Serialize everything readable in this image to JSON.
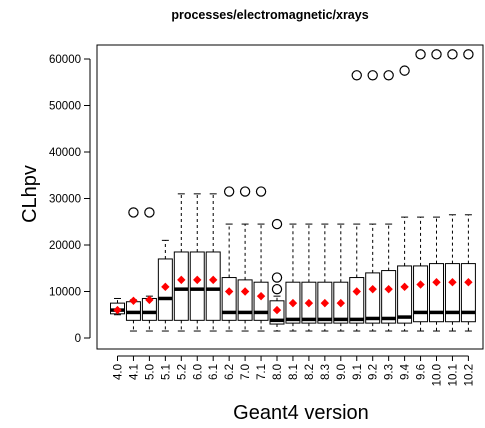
{
  "chart_data": {
    "type": "boxplot",
    "title": "processes/electromagnetic/xrays",
    "xlabel": "Geant4 version",
    "ylabel": "CLhpv",
    "ylim": [
      -1500,
      64000
    ],
    "yticks": [
      0,
      10000,
      20000,
      30000,
      40000,
      50000,
      60000
    ],
    "ytick_labels": [
      "0",
      "10000",
      "20000",
      "30000",
      "40000",
      "50000",
      "60000"
    ],
    "categories": [
      "4.0",
      "4.1",
      "5.0",
      "5.1",
      "5.2",
      "6.0",
      "6.1",
      "6.2",
      "7.0",
      "7.1",
      "8.0",
      "8.1",
      "8.2",
      "8.3",
      "9.0",
      "9.1",
      "9.2",
      "9.3",
      "9.4",
      "9.6",
      "10.0",
      "10.1",
      "10.2"
    ],
    "boxes": [
      {
        "wlo": 5000,
        "q1": 5200,
        "med": 6000,
        "q3": 7500,
        "whi": 8500,
        "mean": 6000,
        "outliers": []
      },
      {
        "wlo": 1500,
        "q1": 3800,
        "med": 5500,
        "q3": 7800,
        "whi": 8200,
        "mean": 8000,
        "outliers": [
          27000
        ]
      },
      {
        "wlo": 1500,
        "q1": 3800,
        "med": 5500,
        "q3": 8500,
        "whi": 9000,
        "mean": 8200,
        "outliers": [
          27000
        ]
      },
      {
        "wlo": 1500,
        "q1": 3800,
        "med": 8500,
        "q3": 17000,
        "whi": 21000,
        "mean": 11000,
        "outliers": []
      },
      {
        "wlo": 1500,
        "q1": 3800,
        "med": 10500,
        "q3": 18500,
        "whi": 31000,
        "mean": 12500,
        "outliers": []
      },
      {
        "wlo": 1500,
        "q1": 3800,
        "med": 10500,
        "q3": 18500,
        "whi": 31000,
        "mean": 12500,
        "outliers": []
      },
      {
        "wlo": 1500,
        "q1": 3800,
        "med": 10500,
        "q3": 18500,
        "whi": 31000,
        "mean": 12500,
        "outliers": []
      },
      {
        "wlo": 1500,
        "q1": 3800,
        "med": 5500,
        "q3": 13000,
        "whi": 24500,
        "mean": 10000,
        "outliers": [
          31500
        ]
      },
      {
        "wlo": 1500,
        "q1": 3800,
        "med": 5500,
        "q3": 12500,
        "whi": 24500,
        "mean": 10000,
        "outliers": [
          31500
        ]
      },
      {
        "wlo": 1500,
        "q1": 3800,
        "med": 5500,
        "q3": 12000,
        "whi": 24500,
        "mean": 9000,
        "outliers": [
          31500
        ]
      },
      {
        "wlo": 1500,
        "q1": 3000,
        "med": 3800,
        "q3": 8000,
        "whi": 9000,
        "mean": 6000,
        "outliers": [
          13000,
          10500,
          24500
        ]
      },
      {
        "wlo": 1500,
        "q1": 3200,
        "med": 4000,
        "q3": 12000,
        "whi": 24500,
        "mean": 7500,
        "outliers": []
      },
      {
        "wlo": 1500,
        "q1": 3200,
        "med": 4000,
        "q3": 12000,
        "whi": 24500,
        "mean": 7500,
        "outliers": []
      },
      {
        "wlo": 1500,
        "q1": 3200,
        "med": 4000,
        "q3": 12000,
        "whi": 24500,
        "mean": 7500,
        "outliers": []
      },
      {
        "wlo": 1500,
        "q1": 3200,
        "med": 4000,
        "q3": 12000,
        "whi": 24500,
        "mean": 7500,
        "outliers": []
      },
      {
        "wlo": 1500,
        "q1": 3200,
        "med": 4000,
        "q3": 13000,
        "whi": 24500,
        "mean": 10000,
        "outliers": [
          56500
        ]
      },
      {
        "wlo": 1500,
        "q1": 3200,
        "med": 4200,
        "q3": 14000,
        "whi": 24500,
        "mean": 10500,
        "outliers": [
          56500
        ]
      },
      {
        "wlo": 1500,
        "q1": 3200,
        "med": 4200,
        "q3": 14500,
        "whi": 24500,
        "mean": 10500,
        "outliers": [
          56500
        ]
      },
      {
        "wlo": 1500,
        "q1": 3200,
        "med": 4500,
        "q3": 15500,
        "whi": 26000,
        "mean": 11000,
        "outliers": [
          57500
        ]
      },
      {
        "wlo": 1500,
        "q1": 3500,
        "med": 5500,
        "q3": 15500,
        "whi": 26000,
        "mean": 11500,
        "outliers": [
          61000
        ]
      },
      {
        "wlo": 1500,
        "q1": 3500,
        "med": 5500,
        "q3": 16000,
        "whi": 26000,
        "mean": 12000,
        "outliers": [
          61000
        ]
      },
      {
        "wlo": 1500,
        "q1": 3500,
        "med": 5500,
        "q3": 16000,
        "whi": 26500,
        "mean": 12000,
        "outliers": [
          61000
        ]
      },
      {
        "wlo": 1500,
        "q1": 3500,
        "med": 5500,
        "q3": 16000,
        "whi": 26500,
        "mean": 12000,
        "outliers": [
          61000
        ]
      }
    ],
    "mean_color": "#ff0000",
    "box_color": "#000000",
    "grid": false
  }
}
